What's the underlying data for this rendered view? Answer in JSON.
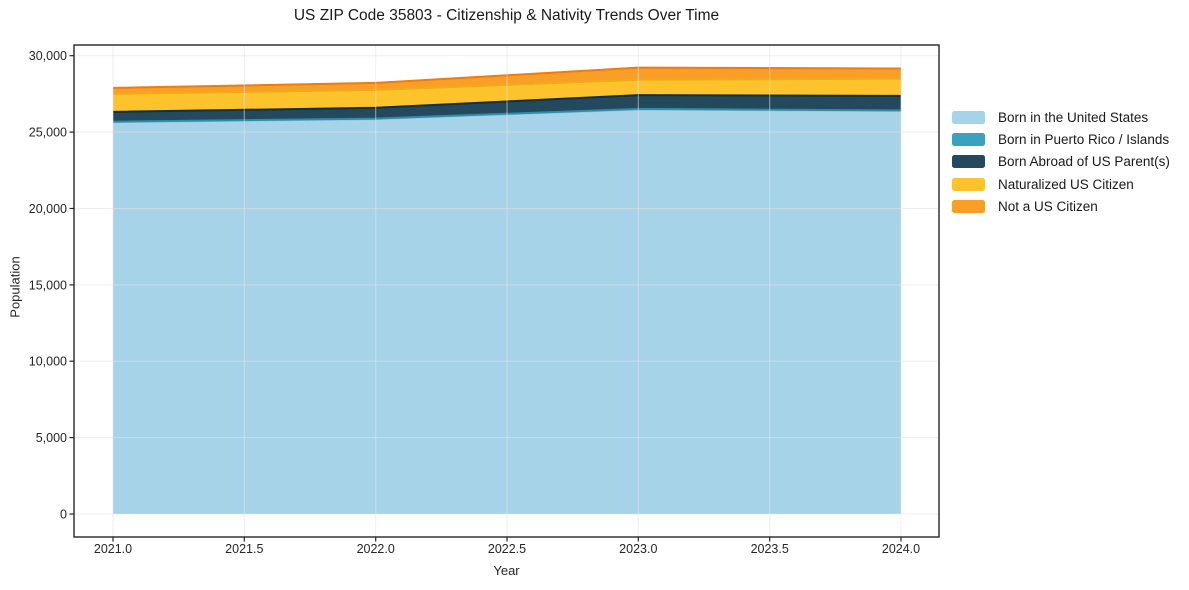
{
  "chart_data": {
    "type": "area",
    "stacked": true,
    "title": "US ZIP Code 35803 - Citizenship & Nativity Trends Over Time",
    "xlabel": "Year",
    "ylabel": "Population",
    "x": [
      2021,
      2022,
      2023,
      2024
    ],
    "series": [
      {
        "name": "Born in the United States",
        "values": [
          25650,
          25850,
          26480,
          26380
        ],
        "fill": "#a6d3e8",
        "edge": "#8cc3dc"
      },
      {
        "name": "Born in Puerto Rico / Islands",
        "values": [
          30,
          30,
          40,
          40
        ],
        "fill": "#3aa1c0",
        "edge": "#2d8dab"
      },
      {
        "name": "Born Abroad of US Parent(s)",
        "values": [
          640,
          710,
          900,
          950
        ],
        "fill": "#24485c",
        "edge": "#132e3d"
      },
      {
        "name": "Naturalized US Citizen",
        "values": [
          1180,
          1170,
          1000,
          1130
        ],
        "fill": "#fdc32d",
        "edge": "#f0ab15"
      },
      {
        "name": "Not a US Citizen",
        "values": [
          390,
          460,
          800,
          660
        ],
        "fill": "#f99f27",
        "edge": "#ee7c0f"
      }
    ],
    "totals": [
      27890,
      28220,
      29220,
      29160
    ],
    "xticks": [
      2021.0,
      2021.5,
      2022.0,
      2022.5,
      2023.0,
      2023.5,
      2024.0
    ],
    "xtick_labels": [
      "2021.0",
      "2021.5",
      "2022.0",
      "2022.5",
      "2023.0",
      "2023.5",
      "2024.0"
    ],
    "yticks": [
      0,
      5000,
      10000,
      15000,
      20000,
      25000,
      30000
    ],
    "ytick_labels": [
      "0",
      "5,000",
      "10,000",
      "15,000",
      "20,000",
      "25,000",
      "30,000"
    ],
    "xlim": [
      2020.8515,
      2024.1446
    ],
    "ylim": [
      -1505,
      30700
    ],
    "grid": true,
    "legend_position": "right",
    "colors": {
      "spine": "#262626",
      "grid": "#e3e3e3",
      "tick_text": "#262626",
      "background": "#ffffff"
    }
  }
}
